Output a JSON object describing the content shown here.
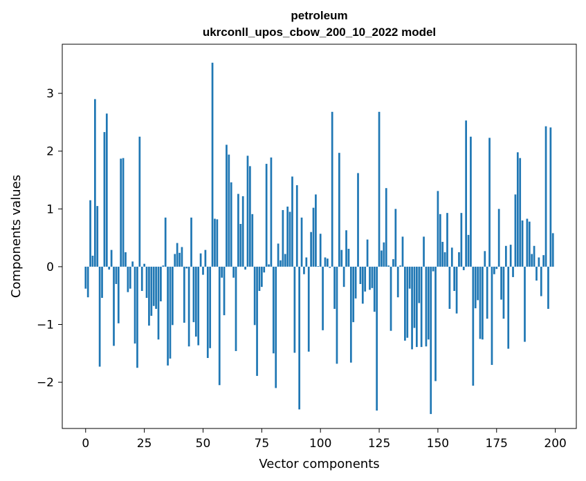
{
  "chart_data": {
    "type": "bar",
    "title": "petroleum",
    "subtitle": "ukrconll_upos_cbow_200_10_2022 model",
    "xlabel": "Vector components",
    "ylabel": "Components values",
    "xlim": [
      -9.95,
      208.95
    ],
    "ylim": [
      -2.8,
      3.85
    ],
    "xticks": [
      0,
      25,
      50,
      75,
      100,
      125,
      150,
      175,
      200
    ],
    "yticks": [
      -2,
      -1,
      0,
      1,
      2,
      3
    ],
    "xtick_labels": [
      "0",
      "25",
      "50",
      "75",
      100,
      125,
      150,
      175,
      200
    ],
    "ytick_labels": [
      "−2",
      "−1",
      "0",
      "1",
      "2",
      "3"
    ],
    "bar_color": "#1f77b4",
    "grid": false,
    "x": [
      0,
      1,
      2,
      3,
      4,
      5,
      6,
      7,
      8,
      9,
      10,
      11,
      12,
      13,
      14,
      15,
      16,
      17,
      18,
      19,
      20,
      21,
      22,
      23,
      24,
      25,
      26,
      27,
      28,
      29,
      30,
      31,
      32,
      33,
      34,
      35,
      36,
      37,
      38,
      39,
      40,
      41,
      42,
      43,
      44,
      45,
      46,
      47,
      48,
      49,
      50,
      51,
      52,
      53,
      54,
      55,
      56,
      57,
      58,
      59,
      60,
      61,
      62,
      63,
      64,
      65,
      66,
      67,
      68,
      69,
      70,
      71,
      72,
      73,
      74,
      75,
      76,
      77,
      78,
      79,
      80,
      81,
      82,
      83,
      84,
      85,
      86,
      87,
      88,
      89,
      90,
      91,
      92,
      93,
      94,
      95,
      96,
      97,
      98,
      99,
      100,
      101,
      102,
      103,
      104,
      105,
      106,
      107,
      108,
      109,
      110,
      111,
      112,
      113,
      114,
      115,
      116,
      117,
      118,
      119,
      120,
      121,
      122,
      123,
      124,
      125,
      126,
      127,
      128,
      129,
      130,
      131,
      132,
      133,
      134,
      135,
      136,
      137,
      138,
      139,
      140,
      141,
      142,
      143,
      144,
      145,
      146,
      147,
      148,
      149,
      150,
      151,
      152,
      153,
      154,
      155,
      156,
      157,
      158,
      159,
      160,
      161,
      162,
      163,
      164,
      165,
      166,
      167,
      168,
      169,
      170,
      171,
      172,
      173,
      174,
      175,
      176,
      177,
      178,
      179,
      180,
      181,
      182,
      183,
      184,
      185,
      186,
      187,
      188,
      189,
      190,
      191,
      192,
      193,
      194,
      195,
      196,
      197,
      198,
      199
    ],
    "values": [
      -0.38,
      -0.53,
      1.15,
      0.19,
      2.9,
      1.05,
      -1.73,
      -0.54,
      2.33,
      2.65,
      -0.05,
      0.29,
      -1.37,
      -0.3,
      -0.98,
      1.87,
      1.88,
      0.25,
      -0.44,
      -0.38,
      0.09,
      -1.33,
      -1.75,
      2.25,
      -0.42,
      0.05,
      -0.54,
      -1.02,
      -0.85,
      -0.68,
      -0.73,
      -1.26,
      -0.6,
      0.02,
      0.85,
      -1.71,
      -1.59,
      -1.01,
      0.22,
      0.41,
      0.24,
      0.34,
      -0.97,
      -0.03,
      -1.38,
      0.85,
      -0.96,
      -1.21,
      -1.36,
      0.23,
      -0.14,
      0.29,
      -1.58,
      -1.41,
      3.53,
      0.83,
      0.82,
      -2.05,
      -0.19,
      -0.84,
      2.11,
      1.94,
      1.46,
      -0.19,
      -1.46,
      1.26,
      0.74,
      1.22,
      -0.05,
      1.92,
      1.74,
      0.91,
      -1.01,
      -1.89,
      -0.42,
      -0.35,
      -0.1,
      1.78,
      0.04,
      1.89,
      -1.5,
      -2.1,
      0.4,
      0.11,
      0.98,
      0.22,
      1.04,
      0.95,
      1.56,
      -1.49,
      1.41,
      -2.47,
      0.85,
      -0.13,
      0.16,
      -1.47,
      0.6,
      1.02,
      1.25,
      0.01,
      0.57,
      -1.1,
      0.16,
      0.14,
      -0.02,
      2.68,
      -0.73,
      -1.68,
      1.97,
      0.29,
      -0.35,
      0.63,
      0.31,
      -1.66,
      -0.96,
      -0.55,
      1.62,
      -0.3,
      -0.64,
      -0.43,
      0.47,
      -0.4,
      -0.37,
      -0.78,
      -2.49,
      2.68,
      0.28,
      0.42,
      1.36,
      0.02,
      -1.11,
      0.13,
      1.0,
      -0.53,
      0.02,
      0.52,
      -1.28,
      -1.23,
      -0.38,
      -1.43,
      -1.06,
      -1.39,
      -0.63,
      -1.39,
      0.52,
      -1.38,
      -1.26,
      -2.55,
      -0.08,
      -1.98,
      1.31,
      0.91,
      0.43,
      0.25,
      0.93,
      -0.73,
      0.33,
      -0.42,
      -0.81,
      0.25,
      0.93,
      -0.06,
      2.53,
      0.55,
      2.25,
      -2.06,
      -0.72,
      -0.58,
      -1.25,
      -1.26,
      0.27,
      -0.9,
      2.23,
      -1.7,
      -0.13,
      -0.04,
      1.0,
      -0.57,
      -0.9,
      0.36,
      -1.42,
      0.38,
      -0.18,
      1.25,
      1.98,
      1.88,
      0.8,
      -1.3,
      0.83,
      0.78,
      0.22,
      0.36,
      -0.24,
      0.16,
      -0.51,
      0.2,
      2.43,
      -0.73,
      2.41,
      0.58
    ]
  }
}
